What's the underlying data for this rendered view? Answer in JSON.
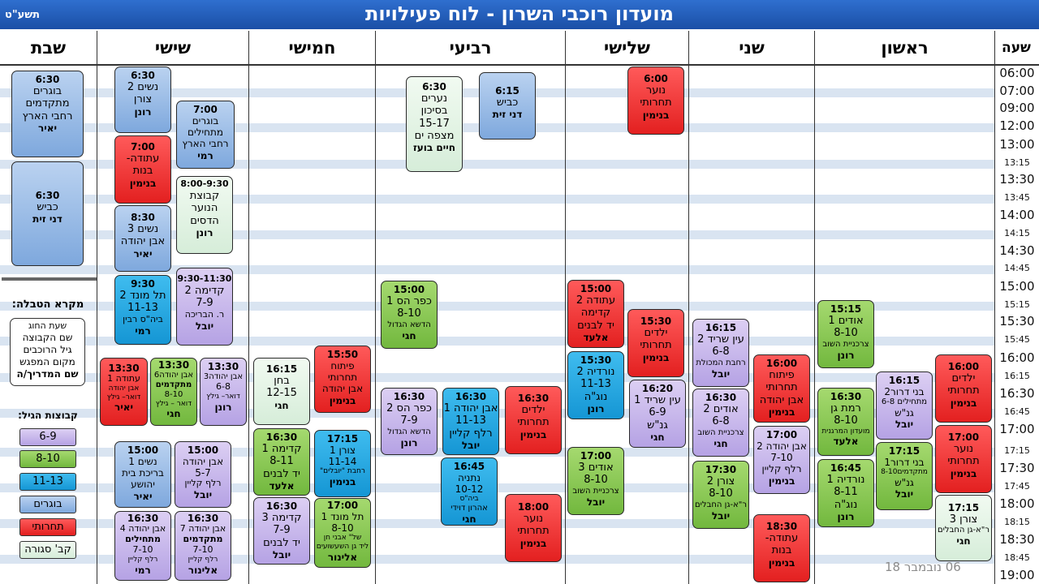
{
  "header": {
    "title": "מועדון רוכבי השרון - לוח פעילויות",
    "year": "תשע\"ט"
  },
  "days": {
    "hour": "שעה",
    "sun": "ראשון",
    "mon": "שני",
    "tue": "שלישי",
    "wed": "רביעי",
    "thu": "חמישי",
    "fri": "שישי",
    "sat": "שבת"
  },
  "times": [
    "06:00",
    "07:00",
    "09:00",
    "12:00",
    "13:00",
    "13:15",
    "13:30",
    "13:45",
    "14:00",
    "14:15",
    "14:30",
    "14:45",
    "15:00",
    "15:15",
    "15:30",
    "15:45",
    "16:00",
    "16:15",
    "16:30",
    "16:45",
    "17:00",
    "17:15",
    "17:30",
    "17:45",
    "18:00",
    "18:15",
    "18:30",
    "18:45",
    "19:00"
  ],
  "colors": {
    "purple": "#c3b3ea",
    "green": "#8cc95a",
    "cyan": "#2aa9e2",
    "blue": "#9dbde6",
    "red": "#f03a3a",
    "closed": "#e4f3e6"
  },
  "cards": {
    "sat1": {
      "l0": "6:30",
      "l1": "בוגרים",
      "l2": "מתקדמים",
      "l3": "רחבי הארץ",
      "l4": "יאיר"
    },
    "sat2": {
      "l0": "6:30",
      "l1": "כביש",
      "l2": "דני זית"
    },
    "fri1": {
      "l0": "6:30",
      "l1": "נשים 2",
      "l2": "צורן",
      "l3": "רונן"
    },
    "fri2": {
      "l0": "7:00",
      "l1": "בוגרים",
      "l2": "מתחילים",
      "l3": "רחבי הארץ",
      "l4": "רמי"
    },
    "fri3": {
      "l0": "7:00",
      "l1": "עתודה-",
      "l2": "בנות",
      "l3": "בנימין"
    },
    "fri4": {
      "l0": "8:00-9:30",
      "l1": "קבוצת",
      "l2": "הנוער",
      "l3": "הדסים",
      "l4": "רונן"
    },
    "fri5": {
      "l0": "8:30",
      "l1": "נשים 3",
      "l2": "אבן יהודה",
      "l3": "יאיר"
    },
    "fri6": {
      "l0": "9:30-11:30",
      "l1": "קדימה 2",
      "l2": "7-9",
      "l3": "ר. הבריכה",
      "l4": "יובל"
    },
    "fri7": {
      "l0": "9:30",
      "l1": "תל מונד 2",
      "l2": "11-13",
      "l3": "ביה\"ס רבין",
      "l4": "רמי"
    },
    "fri8": {
      "l0": "13:30",
      "l1": "עתודה 1",
      "l2": "אבן יהודה",
      "l3": "דואר– גילץ",
      "l4": "יאיר"
    },
    "fri9": {
      "l0": "13:30",
      "l1": "אבן יהודה6",
      "l2": "מתקדמים",
      "l3": "8-10",
      "l4": "דואר – גילץ",
      "l5": "חגי"
    },
    "fri10": {
      "l0": "13:30",
      "l1": "אבן יהודה3",
      "l2": "6-8",
      "l3": "דואר– גילץ",
      "l4": "רונן"
    },
    "fri11": {
      "l0": "15:00",
      "l1": "נשים 1",
      "l2": "בריכת בית",
      "l3": "יהושע",
      "l4": "יאיר"
    },
    "fri12": {
      "l0": "15:00",
      "l1": "אבן יהודה",
      "l2": "5-7",
      "l3": "רלף קליין",
      "l4": "יובל"
    },
    "fri13": {
      "l0": "16:30",
      "l1": "אבן יהודה 4",
      "l2": "מתחילים",
      "l3": "7-10",
      "l4": "רלף קליין",
      "l5": "רמי"
    },
    "fri14": {
      "l0": "16:30",
      "l1": "אבן יהודה 7",
      "l2": "מתקדמים",
      "l3": "7-10",
      "l4": "רלף קליין",
      "l5": "אלינור"
    },
    "thu1": {
      "l0": "15:50",
      "l1": "פיתוח",
      "l2": "תחרותי",
      "l3": "אבן יהודה",
      "l4": "בנימין"
    },
    "thu2": {
      "l0": "16:15",
      "l1": "בחן",
      "l2": "12-15",
      "l3": "חגי"
    },
    "thu3": {
      "l0": "16:30",
      "l1": "קדימה 1",
      "l2": "8-11",
      "l3": "יד לבנים",
      "l4": "אלעד"
    },
    "thu4": {
      "l0": "17:15",
      "l1": "צורן 1",
      "l2": "11-14",
      "l3": "רחבת \"יובלים\"",
      "l4": "בנימין"
    },
    "thu5": {
      "l0": "16:30",
      "l1": "קדימה 3",
      "l2": "7-9",
      "l3": "יד לבנים",
      "l4": "יובל"
    },
    "thu6": {
      "l0": "17:00",
      "l1": "תל מונד 1",
      "l2": "8-10",
      "l3": "של\" אבני חן",
      "l4": "ליד גן השעשועים",
      "l5": "אלינור"
    },
    "wed1": {
      "l0": "6:30",
      "l1": "נערים",
      "l2": "בסיכון",
      "l3": "15-17",
      "l4": "מצפה ים",
      "l5": "חיים בועז"
    },
    "wed2": {
      "l0": "6:15",
      "l1": "כביש",
      "l2": "דני זית"
    },
    "wed3": {
      "l0": "15:00",
      "l1": "כפר הס 1",
      "l2": "8-10",
      "l3": "הדשא הגדול",
      "l4": "חגי"
    },
    "wed4": {
      "l0": "16:30",
      "l1": "כפר הס 2",
      "l2": "7-9",
      "l3": "הדשא הגדול",
      "l4": "רונן"
    },
    "wed5": {
      "l0": "16:30",
      "l1": "אבן יהודה 1",
      "l2": "11-13",
      "l3": "רלף קליין",
      "l4": "יובל"
    },
    "wed6": {
      "l0": "16:30",
      "l1": "ילדים",
      "l2": "תחרותי",
      "l3": "בנימין"
    },
    "wed7": {
      "l0": "16:45",
      "l1": "נתניה",
      "l2": "10-12",
      "l3": "ביה\"ס",
      "l4": "אהרון דוידי",
      "l5": "חגי"
    },
    "wed8": {
      "l0": "18:00",
      "l1": "נוער",
      "l2": "תחרותי",
      "l3": "בנימין"
    },
    "tue1": {
      "l0": "6:00",
      "l1": "נוער",
      "l2": "תחרותי",
      "l3": "בנימין"
    },
    "tue2": {
      "l0": "15:00",
      "l1": "עתודה 2",
      "l2": "קדימה",
      "l3": "יד לבנים",
      "l4": "אלעד"
    },
    "tue3": {
      "l0": "15:30",
      "l1": "ילדים",
      "l2": "תחרותי",
      "l3": "בנימין"
    },
    "tue4": {
      "l0": "15:30",
      "l1": "נורדיה 2",
      "l2": "11-13",
      "l3": "נוג\"ה",
      "l4": "רונן"
    },
    "tue5": {
      "l0": "16:20",
      "l1": "עין שריד 1",
      "l2": "6-9",
      "l3": "גנ\"ש",
      "l4": "חגי"
    },
    "tue6": {
      "l0": "17:00",
      "l1": "אודים 3",
      "l2": "8-10",
      "l3": "צרכניית השוב",
      "l4": "יובל"
    },
    "mon1": {
      "l0": "16:15",
      "l1": "עין שריד 2",
      "l2": "6-8",
      "l3": "רחבת המכולת",
      "l4": "יובל"
    },
    "mon2": {
      "l0": "16:00",
      "l1": "פיתוח",
      "l2": "תחרותי",
      "l3": "אבן יהודה",
      "l4": "בנימין"
    },
    "mon3": {
      "l0": "16:30",
      "l1": "אודים 2",
      "l2": "6-8",
      "l3": "צרכניית השוב",
      "l4": "חגי"
    },
    "mon4": {
      "l0": "17:00",
      "l1": "אבן יהודה 2",
      "l2": "7-10",
      "l3": "רלף קליין",
      "l4": "בנימין"
    },
    "mon5": {
      "l0": "17:30",
      "l1": "צורן 2",
      "l2": "8-10",
      "l3": "ר\"א-גן החבלים",
      "l4": "יובל"
    },
    "mon6": {
      "l0": "18:30",
      "l1": "עתודה-",
      "l2": "בנות",
      "l3": "בנימין"
    },
    "sun1": {
      "l0": "15:15",
      "l1": "אודים 1",
      "l2": "8-10",
      "l3": "צרכניית השוב",
      "l4": "רונן"
    },
    "sun2": {
      "l0": "16:15",
      "l1": "בני דרור2",
      "l2": "מתחילים 6-8",
      "l3": "גנ\"ש",
      "l4": "יובל"
    },
    "sun3": {
      "l0": "16:00",
      "l1": "ילדים",
      "l2": "תחרותי",
      "l3": "בנימין"
    },
    "sun4": {
      "l0": "16:30",
      "l1": "רמת גן",
      "l2": "8-10",
      "l3": "מועדון המרגנית",
      "l4": "אלעד"
    },
    "sun5": {
      "l0": "17:00",
      "l1": "נוער",
      "l2": "תחרותי",
      "l3": "בנימין"
    },
    "sun6": {
      "l0": "16:45",
      "l1": "נורדיה 1",
      "l2": "8-11",
      "l3": "נוג\"ה",
      "l4": "רונן"
    },
    "sun7": {
      "l0": "17:15",
      "l1": "בני דרור1",
      "l2": "מתקדמים8-10",
      "l3": "גנ\"ש",
      "l4": "יובל"
    },
    "sun8": {
      "l0": "17:15",
      "l1": "צורן 3",
      "l2": "ר\"א-גן החבלים",
      "l3": "חגי"
    }
  },
  "legend": {
    "title": "מקרא הטבלה:",
    "l0": "שעת החוג",
    "l1": "שם הקבוצה",
    "l2": "גיל הרוכבים",
    "l3": "מקום המפגש",
    "l4": "שם המדריך/ה",
    "groups_title": "קבוצות הגיל:",
    "g0": "6-9",
    "g1": "8-10",
    "g2": "11-13",
    "g3": "בוגרים",
    "g4": "תחרותי",
    "g5": "קב' סגורה"
  },
  "footer": {
    "date": "06 נובמבר 18"
  }
}
